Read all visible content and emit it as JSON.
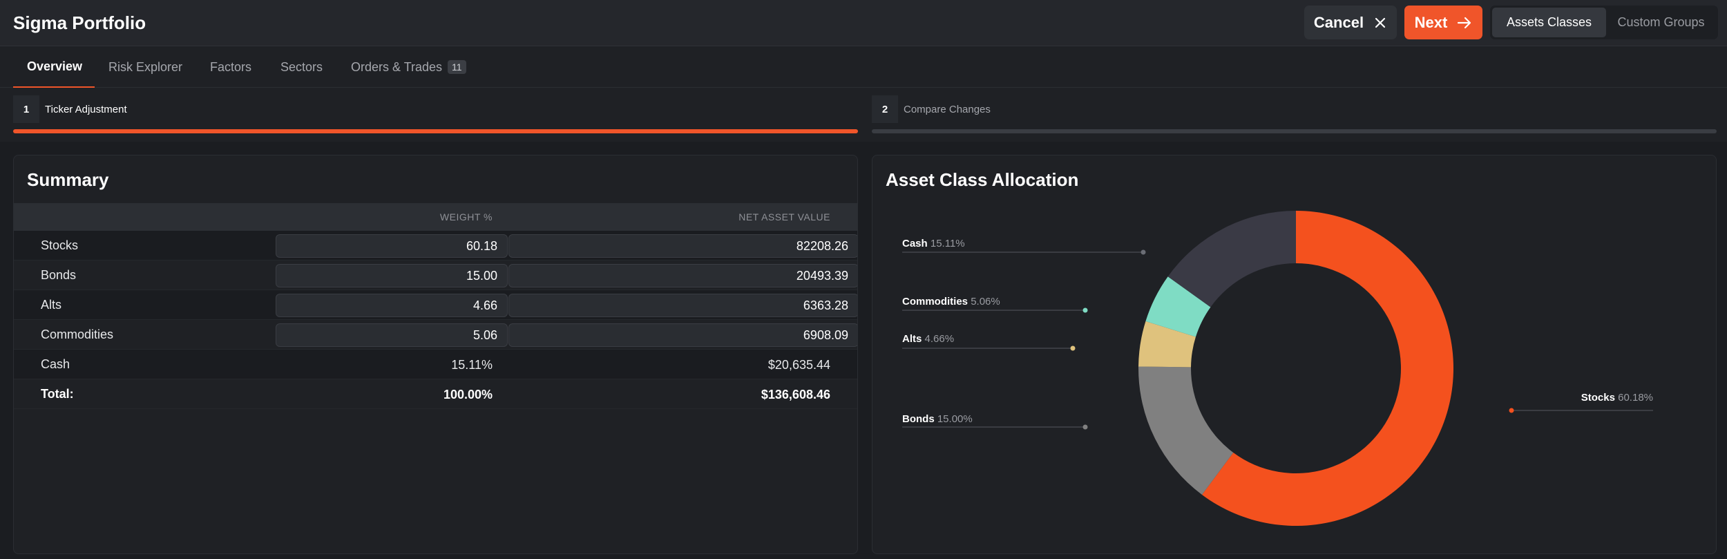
{
  "app": {
    "title": "Sigma Portfolio"
  },
  "header": {
    "cancel_label": "Cancel",
    "next_label": "Next",
    "segment": [
      "Assets Classes",
      "Custom Groups"
    ]
  },
  "tabs": [
    {
      "label": "Overview",
      "active": true
    },
    {
      "label": "Risk Explorer"
    },
    {
      "label": "Factors"
    },
    {
      "label": "Sectors"
    },
    {
      "label": "Orders & Trades",
      "badge": "11"
    }
  ],
  "steps": [
    {
      "num": "1",
      "label": "Ticker Adjustment",
      "active": true
    },
    {
      "num": "2",
      "label": "Compare Changes",
      "active": false
    }
  ],
  "summary": {
    "title": "Summary",
    "columns": [
      "WEIGHT %",
      "NET ASSET VALUE"
    ],
    "rows": [
      {
        "name": "Stocks",
        "weight": "60.18",
        "nav": "82208.26",
        "editable": true
      },
      {
        "name": "Bonds",
        "weight": "15.00",
        "nav": "20493.39",
        "editable": true
      },
      {
        "name": "Alts",
        "weight": "4.66",
        "nav": "6363.28",
        "editable": true
      },
      {
        "name": "Commodities",
        "weight": "5.06",
        "nav": "6908.09",
        "editable": true
      },
      {
        "name": "Cash",
        "weight": "15.11%",
        "nav": "$20,635.44",
        "editable": false
      }
    ],
    "total": {
      "name": "Total:",
      "weight": "100.00%",
      "nav": "$136,608.46"
    }
  },
  "allocation": {
    "title": "Asset Class Allocation"
  },
  "chart_data": {
    "type": "pie",
    "title": "Asset Class Allocation",
    "donut": true,
    "slices": [
      {
        "name": "Stocks",
        "label": "Stocks",
        "pct_label": "60.18%",
        "value": 60.18,
        "color": "#f4511e"
      },
      {
        "name": "Bonds",
        "label": "Bonds",
        "pct_label": "15.00%",
        "value": 15.0,
        "color": "#808080"
      },
      {
        "name": "Alts",
        "label": "Alts",
        "pct_label": "4.66%",
        "value": 4.66,
        "color": "#dfc27d"
      },
      {
        "name": "Commodities",
        "label": "Commodities",
        "pct_label": "5.06%",
        "value": 5.06,
        "color": "#7fdcc4"
      },
      {
        "name": "Cash",
        "label": "Cash",
        "pct_label": "15.11%",
        "value": 15.11,
        "color": "#3a3a45"
      }
    ]
  },
  "colors": {
    "accent": "#f0552a",
    "background": "#1b1d21",
    "panel": "#1f2125"
  }
}
